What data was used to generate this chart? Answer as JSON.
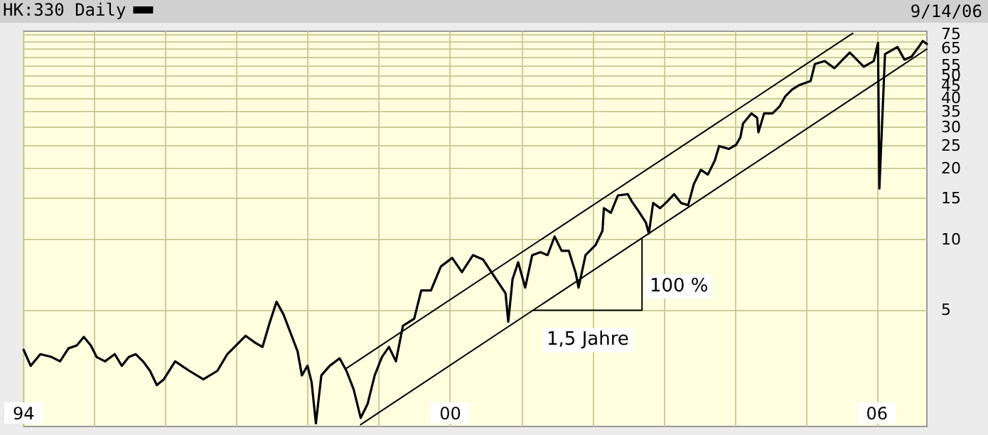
{
  "chart_data": {
    "type": "line",
    "log": "y",
    "grid": true,
    "legend": "top left",
    "marker": "none",
    "line_style": "solid",
    "annotations": [
      "9/14/06",
      "100 %",
      "1,5 Jahre"
    ],
    "xlim": [
      "1994-01-01",
      "2006-09-14"
    ],
    "xticks": [
      {
        "value": "1994-01-01",
        "label": "94"
      },
      {
        "value": "1995-01-01",
        "label": null
      },
      {
        "value": "1996-01-01",
        "label": null
      },
      {
        "value": "1997-01-01",
        "label": null
      },
      {
        "value": "1998-01-01",
        "label": null
      },
      {
        "value": "1999-01-01",
        "label": null
      },
      {
        "value": "2000-01-01",
        "label": "00"
      },
      {
        "value": "2001-01-01",
        "label": null
      },
      {
        "value": "2002-01-01",
        "label": null
      },
      {
        "value": "2003-01-01",
        "label": null
      },
      {
        "value": "2004-01-01",
        "label": null
      },
      {
        "value": "2005-01-01",
        "label": null
      },
      {
        "value": "2006-01-01",
        "label": "06"
      }
    ],
    "ylim": [
      1.6,
      77
    ],
    "yticks": [
      5,
      10,
      15,
      20,
      25,
      30,
      35,
      40,
      45,
      50,
      55,
      {
        "value": 60,
        "label": null
      },
      65,
      {
        "value": 70,
        "label": null
      },
      75
    ],
    "series": [
      {
        "name": "HK:330 Daily",
        "color": "#000000",
        "x": [
          "1994-01-01",
          "1994-02-06",
          "1994-03-28",
          "1994-05-25",
          "1994-07-07",
          "1994-08-19",
          "1994-10-01",
          "1994-11-06",
          "1994-12-12",
          "1995-01-11",
          "1995-02-23",
          "1995-04-14",
          "1995-05-20",
          "1995-06-25",
          "1995-07-31",
          "1995-09-06",
          "1995-10-12",
          "1995-11-16",
          "1995-12-22",
          "1996-02-18",
          "1996-05-01",
          "1996-07-12",
          "1996-09-22",
          "1996-11-12",
          "1997-01-02",
          "1997-02-14",
          "1997-04-05",
          "1997-05-12",
          "1997-06-17",
          "1997-07-23",
          "1997-08-28",
          "1997-10-03",
          "1997-11-08",
          "1997-11-30",
          "1997-12-29",
          "1998-01-19",
          "1998-02-10",
          "1998-03-10",
          "1998-04-22",
          "1998-06-12",
          "1998-07-17",
          "1998-08-23",
          "1998-09-28",
          "1998-11-03",
          "1998-12-09",
          "1999-01-15",
          "1999-02-20",
          "1999-03-28",
          "1999-05-03",
          "1999-06-30",
          "1999-08-05",
          "1999-09-24",
          "1999-11-14",
          "2000-01-11",
          "2000-03-01",
          "2000-04-27",
          "2000-06-17",
          "2000-08-14",
          "2000-10-11",
          "2000-10-25",
          "2000-11-16",
          "2000-12-15",
          "2001-01-20",
          "2001-02-25",
          "2001-04-09",
          "2001-05-15",
          "2001-06-20",
          "2001-07-26",
          "2001-09-01",
          "2001-10-07",
          "2001-10-21",
          "2001-11-26",
          "2002-01-16",
          "2002-02-21",
          "2002-02-28",
          "2002-04-05",
          "2002-05-11",
          "2002-07-01",
          "2002-07-22",
          "2002-08-20",
          "2002-10-02",
          "2002-10-17",
          "2002-11-08",
          "2002-12-14",
          "2003-01-19",
          "2003-02-24",
          "2003-04-01",
          "2003-05-07",
          "2003-06-05",
          "2003-07-11",
          "2003-08-16",
          "2003-09-21",
          "2003-10-13",
          "2003-12-02",
          "2004-01-08",
          "2004-01-30",
          "2004-02-13",
          "2004-03-27",
          "2004-04-25",
          "2004-05-02",
          "2004-05-31",
          "2004-07-13",
          "2004-08-18",
          "2004-09-16",
          "2004-10-22",
          "2004-11-27",
          "2005-01-25",
          "2005-02-16",
          "2005-04-07",
          "2005-05-27",
          "2005-07-09",
          "2005-08-14",
          "2005-09-19",
          "2005-10-25",
          "2005-12-15",
          "2006-01-06",
          "2006-01-13",
          "2006-02-11",
          "2006-04-16",
          "2006-05-22",
          "2006-06-27",
          "2006-08-03",
          "2006-08-24",
          "2006-09-14"
        ],
        "values": [
          3.39,
          2.9,
          3.25,
          3.16,
          3.03,
          3.44,
          3.54,
          3.85,
          3.54,
          3.16,
          3.03,
          3.25,
          2.9,
          3.16,
          3.25,
          3.03,
          2.76,
          2.4,
          2.54,
          3.03,
          2.76,
          2.54,
          2.76,
          3.25,
          3.58,
          3.89,
          3.63,
          3.49,
          4.41,
          5.43,
          4.79,
          4.0,
          3.34,
          2.64,
          2.9,
          2.47,
          1.65,
          2.64,
          2.9,
          3.12,
          2.76,
          2.3,
          1.74,
          2.0,
          2.64,
          3.16,
          3.49,
          3.03,
          4.29,
          4.6,
          6.07,
          6.07,
          7.68,
          8.35,
          7.26,
          8.58,
          8.23,
          6.97,
          5.9,
          4.47,
          6.78,
          8.0,
          6.24,
          8.58,
          8.83,
          8.58,
          10.3,
          8.95,
          8.95,
          7.17,
          6.24,
          8.58,
          9.46,
          10.9,
          13.6,
          13.0,
          15.4,
          15.6,
          14.5,
          13.4,
          11.8,
          10.6,
          14.3,
          13.6,
          14.5,
          15.6,
          14.3,
          14.0,
          17.2,
          19.8,
          18.9,
          21.7,
          25.0,
          24.3,
          25.3,
          27.2,
          31.2,
          34.4,
          33.0,
          28.6,
          34.4,
          34.4,
          36.8,
          40.6,
          43.5,
          45.4,
          47.3,
          55.9,
          57.5,
          53.6,
          58.3,
          62.5,
          58.3,
          54.4,
          57.5,
          68.7,
          16.5,
          61.6,
          66.0,
          58.3,
          60.0,
          66.0,
          70.0,
          68.0
        ]
      },
      {
        "type": "line",
        "color": "#000000",
        "x": [
          "1998-07-17",
          "2005-08-29"
        ],
        "values": [
          2.83,
          75.5
        ]
      },
      {
        "type": "line",
        "color": "#000000",
        "x": [
          "1998-09-28",
          "2006-09-14"
        ],
        "values": [
          1.63,
          64.7
        ]
      },
      {
        "type": "line",
        "color": "#000000",
        "x": [
          "2001-03-04",
          "2002-09-12",
          "2002-09-12"
        ],
        "values": [
          5,
          5,
          10
        ]
      }
    ]
  }
}
